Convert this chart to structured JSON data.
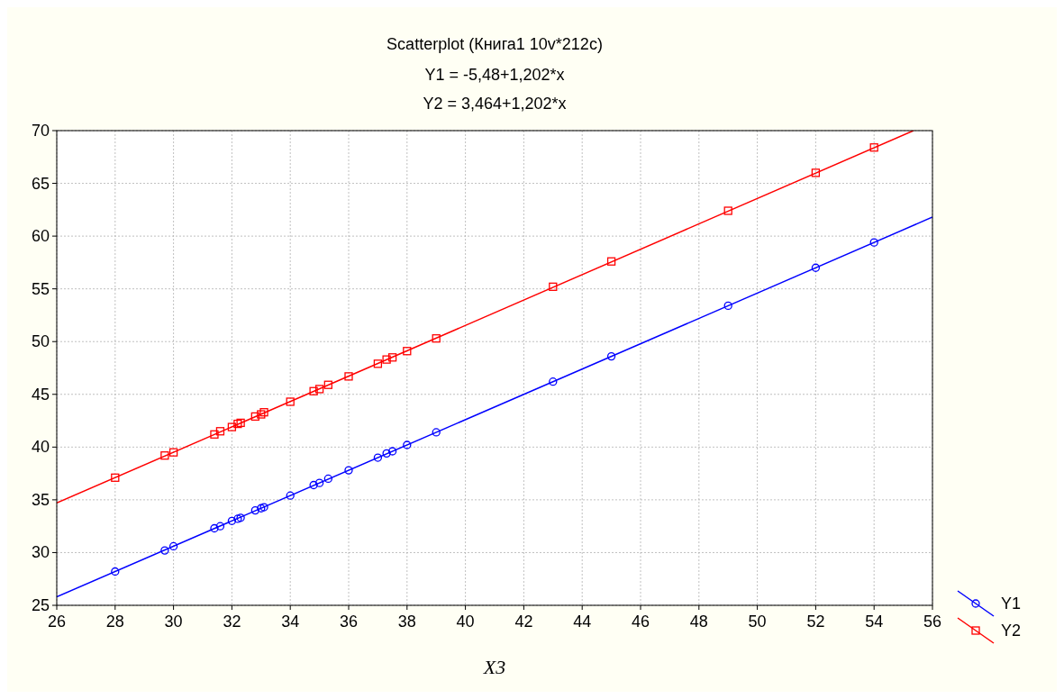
{
  "chart_data": {
    "type": "scatter",
    "title": "Scatterplot (Книга1 10v*212c)",
    "annotations": [
      "Y1 = -5,48+1,202*x",
      "Y2 = 3,464+1,202*x"
    ],
    "xlabel": "X3",
    "x": [
      28,
      29.7,
      30,
      31.4,
      31.6,
      32,
      32.2,
      32.3,
      32.8,
      33,
      33.1,
      34,
      34.8,
      35,
      35.3,
      36,
      37,
      37.3,
      37.5,
      38,
      39,
      43,
      45,
      49,
      52,
      54
    ],
    "series": [
      {
        "name": "Y1",
        "color": "#0000ff",
        "marker": "circle",
        "values": [
          28.2,
          30.2,
          30.6,
          32.3,
          32.5,
          33,
          33.2,
          33.3,
          34,
          34.2,
          34.3,
          35.4,
          36.4,
          36.6,
          37,
          37.8,
          39,
          39.4,
          39.6,
          40.2,
          41.4,
          46.2,
          48.6,
          53.4,
          57,
          59.4
        ]
      },
      {
        "name": "Y2",
        "color": "#ff0000",
        "marker": "square",
        "values": [
          37.1,
          39.2,
          39.5,
          41.2,
          41.5,
          41.9,
          42.2,
          42.3,
          42.9,
          43.1,
          43.3,
          44.3,
          45.3,
          45.5,
          45.9,
          46.7,
          47.9,
          48.3,
          48.5,
          49.1,
          50.3,
          55.2,
          57.6,
          62.4,
          66,
          68.4
        ]
      },
      {
        "type": "line",
        "color": "#0000ff",
        "marker": "none",
        "x": [
          26,
          56
        ],
        "values": [
          25.8,
          61.8
        ]
      },
      {
        "type": "line",
        "color": "#ff0000",
        "marker": "none",
        "x": [
          26,
          55.35
        ],
        "values": [
          34.7,
          70
        ]
      }
    ],
    "xlim": [
      26,
      56
    ],
    "xticks": [
      26,
      28,
      30,
      32,
      34,
      36,
      38,
      40,
      42,
      44,
      46,
      48,
      50,
      52,
      54,
      56
    ],
    "ylim": [
      25,
      70
    ],
    "yticks": [
      25,
      30,
      35,
      40,
      45,
      50,
      55,
      60,
      65,
      70
    ],
    "grid": true,
    "legend": "bottom right"
  }
}
